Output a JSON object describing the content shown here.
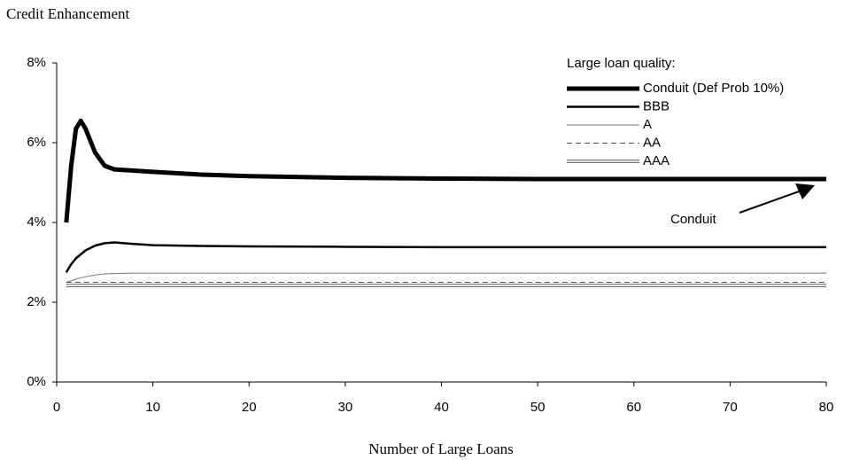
{
  "chart_data": {
    "type": "line",
    "title": "Credit Enhancement",
    "x_label": "Number of Large Loans",
    "legend_title": "Large loan quality:",
    "legend_position": "upper right",
    "annotation": "Conduit",
    "x": [
      1,
      1.5,
      2,
      2.5,
      3,
      4,
      5,
      6,
      8,
      10,
      15,
      20,
      30,
      40,
      50,
      60,
      70,
      80
    ],
    "series": [
      {
        "name": "Conduit (Def Prob 10%)",
        "color": "#000000",
        "line_width": 5,
        "values": [
          4.0,
          5.4,
          6.35,
          6.55,
          6.35,
          5.75,
          5.42,
          5.33,
          5.3,
          5.27,
          5.2,
          5.16,
          5.12,
          5.1,
          5.09,
          5.09,
          5.09,
          5.09
        ]
      },
      {
        "name": "BBB",
        "color": "#000000",
        "line_width": 2.5,
        "values": [
          2.75,
          2.95,
          3.1,
          3.2,
          3.3,
          3.42,
          3.48,
          3.5,
          3.46,
          3.43,
          3.41,
          3.4,
          3.39,
          3.38,
          3.38,
          3.38,
          3.38,
          3.38
        ]
      },
      {
        "name": "A",
        "color": "#777777",
        "line_width": 1,
        "values": [
          2.5,
          2.54,
          2.58,
          2.61,
          2.64,
          2.68,
          2.71,
          2.72,
          2.73,
          2.73,
          2.73,
          2.73,
          2.73,
          2.73,
          2.73,
          2.73,
          2.73,
          2.73
        ]
      },
      {
        "name": "AA",
        "color": "#555555",
        "line_width": 1,
        "dashed": true,
        "values": [
          2.5,
          2.5,
          2.5,
          2.5,
          2.5,
          2.5,
          2.5,
          2.5,
          2.5,
          2.5,
          2.5,
          2.5,
          2.5,
          2.5,
          2.5,
          2.5,
          2.5,
          2.5
        ]
      },
      {
        "name": "AAA",
        "color": "#777777",
        "line_width": 1,
        "double": true,
        "values": [
          2.42,
          2.42,
          2.42,
          2.42,
          2.42,
          2.42,
          2.42,
          2.42,
          2.42,
          2.42,
          2.42,
          2.42,
          2.42,
          2.42,
          2.42,
          2.42,
          2.42,
          2.42
        ]
      }
    ],
    "xlim": [
      0,
      80
    ],
    "xticks": [
      0,
      10,
      20,
      30,
      40,
      50,
      60,
      70,
      80
    ],
    "ylim": [
      0,
      8
    ],
    "yticks": [
      {
        "value": 0,
        "label": "0%"
      },
      {
        "value": 2,
        "label": "2%"
      },
      {
        "value": 4,
        "label": "4%"
      },
      {
        "value": 6,
        "label": "6%"
      },
      {
        "value": 8,
        "label": "8%"
      }
    ]
  }
}
